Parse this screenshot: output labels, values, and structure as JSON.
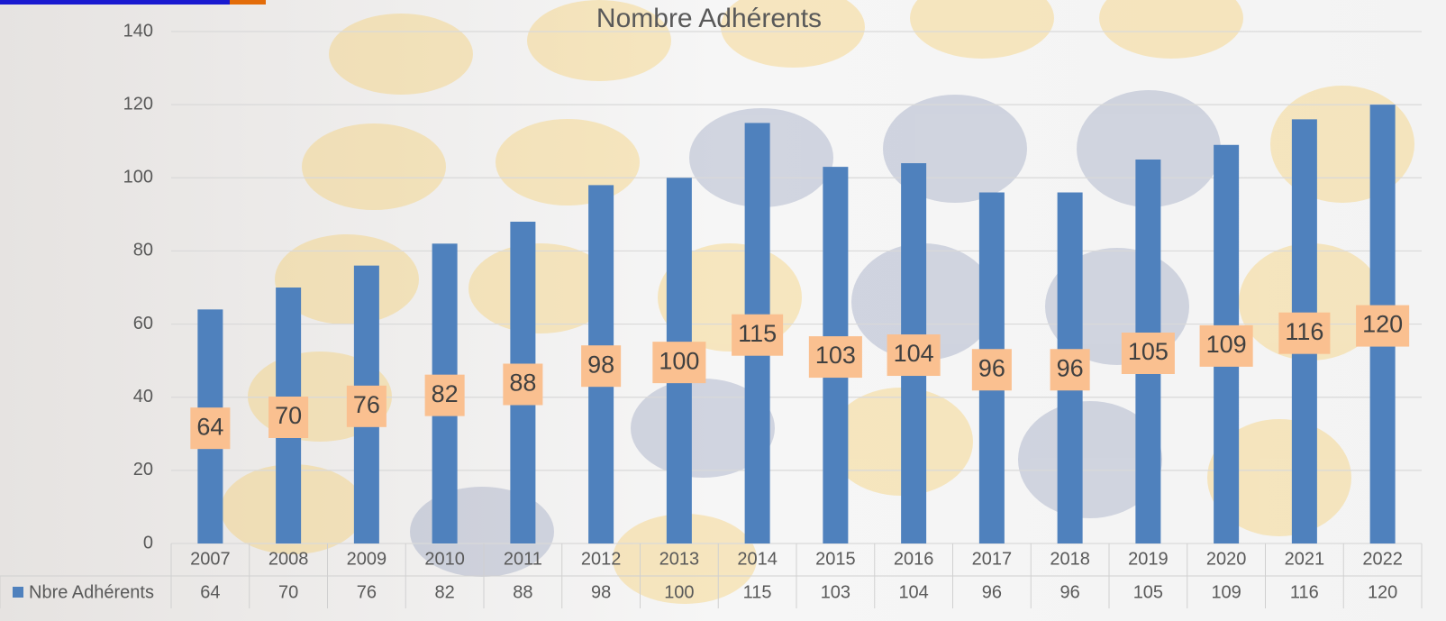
{
  "chart_data": {
    "type": "bar",
    "title": "Nombre  Adhérents",
    "categories": [
      "2007",
      "2008",
      "2009",
      "2010",
      "2011",
      "2012",
      "2013",
      "2014",
      "2015",
      "2016",
      "2017",
      "2018",
      "2019",
      "2020",
      "2021",
      "2022"
    ],
    "series": [
      {
        "name": "Nbre Adhérents",
        "color": "#4f81bd",
        "values": [
          64,
          70,
          76,
          82,
          88,
          98,
          100,
          115,
          103,
          104,
          96,
          96,
          105,
          109,
          116,
          120
        ]
      }
    ],
    "ylim": [
      0,
      140
    ],
    "yticks": [
      0,
      20,
      40,
      60,
      80,
      100,
      120,
      140
    ],
    "grid": true,
    "data_table": true
  }
}
